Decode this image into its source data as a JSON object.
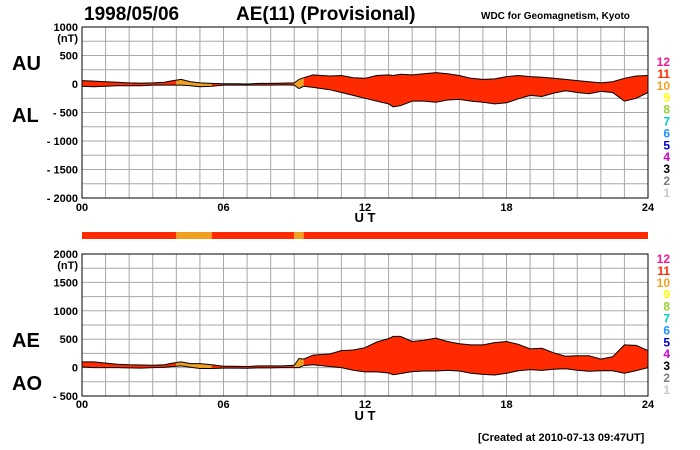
{
  "header": {
    "date": "1998/05/06",
    "title": "AE(11) (Provisional)",
    "source": "WDC for Geomagnetism, Kyoto"
  },
  "footer": {
    "created": "[Created at 2010-07-13 09:47UT]"
  },
  "colors": {
    "station_count_11": "#ff2a00",
    "station_count_10": "#f0a020",
    "outline": "#000000",
    "grid": "#a8a8a8"
  },
  "station_scale": [
    {
      "label": "12",
      "color": "#ff1493"
    },
    {
      "label": "11",
      "color": "#ff2a00"
    },
    {
      "label": "10",
      "color": "#f0a020"
    },
    {
      "label": "9",
      "color": "#ffff00"
    },
    {
      "label": "8",
      "color": "#9acd32"
    },
    {
      "label": "7",
      "color": "#00ced1"
    },
    {
      "label": "6",
      "color": "#1e90ff"
    },
    {
      "label": "5",
      "color": "#0000cd"
    },
    {
      "label": "4",
      "color": "#cc00cc"
    },
    {
      "label": "3",
      "color": "#000000"
    },
    {
      "label": "2",
      "color": "#808080"
    },
    {
      "label": "1",
      "color": "#c8c8c8"
    }
  ],
  "station_bar": {
    "segments": [
      {
        "from": 0,
        "to": 4.0,
        "count": 11
      },
      {
        "from": 4.0,
        "to": 5.5,
        "count": 10
      },
      {
        "from": 5.5,
        "to": 9.0,
        "count": 11
      },
      {
        "from": 9.0,
        "to": 9.4,
        "count": 10
      },
      {
        "from": 9.4,
        "to": 24,
        "count": 11
      }
    ]
  },
  "chart_data": [
    {
      "type": "area",
      "panel": "top",
      "series_labels": [
        "AU",
        "AL"
      ],
      "unit": "(nT)",
      "xlabel": "U T",
      "x_ticks": [
        "00",
        "06",
        "12",
        "18",
        "24"
      ],
      "xlim": [
        0,
        24
      ],
      "ylim": [
        -2000,
        1000
      ],
      "y_ticks": [
        "1000",
        "500",
        "0",
        "- 500",
        "- 1000",
        "- 1500",
        "- 2000"
      ],
      "y_tick_values": [
        1000,
        500,
        0,
        -500,
        -1000,
        -1500,
        -2000
      ],
      "x": [
        0,
        0.5,
        1,
        1.5,
        2,
        2.5,
        3,
        3.5,
        3.8,
        4.2,
        4.6,
        5,
        5.5,
        6,
        6.5,
        7,
        7.5,
        8,
        8.5,
        9,
        9.2,
        9.4,
        9.8,
        10.5,
        11,
        11.5,
        12,
        12.5,
        13,
        13.2,
        13.5,
        14,
        14.5,
        15,
        15.5,
        16,
        16.5,
        17,
        17.5,
        18,
        18.5,
        19,
        19.5,
        20,
        20.5,
        21,
        21.5,
        22,
        22.5,
        23,
        23.5,
        24
      ],
      "series": [
        {
          "name": "AU",
          "values": [
            60,
            50,
            40,
            30,
            20,
            15,
            20,
            30,
            55,
            80,
            40,
            20,
            10,
            5,
            5,
            0,
            10,
            10,
            15,
            20,
            80,
            110,
            160,
            140,
            150,
            110,
            100,
            150,
            160,
            150,
            170,
            160,
            180,
            200,
            180,
            150,
            100,
            80,
            90,
            130,
            150,
            130,
            120,
            100,
            80,
            60,
            40,
            20,
            40,
            100,
            140,
            150
          ]
        },
        {
          "name": "AL",
          "values": [
            -40,
            -50,
            -40,
            -30,
            -30,
            -30,
            -20,
            -20,
            -20,
            -20,
            -30,
            -50,
            -40,
            -20,
            -20,
            -20,
            -20,
            -20,
            -15,
            -20,
            -80,
            -40,
            -60,
            -100,
            -150,
            -200,
            -250,
            -300,
            -350,
            -400,
            -380,
            -300,
            -300,
            -320,
            -280,
            -270,
            -300,
            -320,
            -350,
            -330,
            -260,
            -200,
            -220,
            -160,
            -120,
            -150,
            -170,
            -130,
            -150,
            -300,
            -250,
            -150
          ]
        }
      ]
    },
    {
      "type": "area",
      "panel": "bottom",
      "series_labels": [
        "AE",
        "AO"
      ],
      "unit": "(nT)",
      "xlabel": "U T",
      "x_ticks": [
        "00",
        "06",
        "12",
        "18",
        "24"
      ],
      "xlim": [
        0,
        24
      ],
      "ylim": [
        -500,
        2000
      ],
      "y_ticks": [
        "2000",
        "1500",
        "1000",
        "500",
        "0",
        "- 500"
      ],
      "y_tick_values": [
        2000,
        1500,
        1000,
        500,
        0,
        -500
      ],
      "x": [
        0,
        0.5,
        1,
        1.5,
        2,
        2.5,
        3,
        3.5,
        3.8,
        4.2,
        4.6,
        5,
        5.5,
        6,
        6.5,
        7,
        7.5,
        8,
        8.5,
        9,
        9.2,
        9.4,
        9.8,
        10.5,
        11,
        11.5,
        12,
        12.5,
        13,
        13.2,
        13.5,
        14,
        14.5,
        15,
        15.5,
        16,
        16.5,
        17,
        17.5,
        18,
        18.5,
        19,
        19.5,
        20,
        20.5,
        21,
        21.5,
        22,
        22.5,
        23,
        23.5,
        24
      ],
      "series": [
        {
          "name": "AE",
          "values": [
            100,
            100,
            80,
            60,
            50,
            45,
            40,
            50,
            75,
            100,
            70,
            70,
            50,
            25,
            25,
            20,
            30,
            30,
            30,
            40,
            160,
            150,
            220,
            240,
            300,
            310,
            350,
            450,
            510,
            550,
            550,
            460,
            480,
            520,
            460,
            420,
            400,
            400,
            440,
            460,
            410,
            330,
            340,
            260,
            200,
            210,
            210,
            150,
            190,
            400,
            390,
            300
          ]
        },
        {
          "name": "AO",
          "values": [
            10,
            0,
            0,
            0,
            -5,
            -8,
            0,
            5,
            18,
            30,
            5,
            -15,
            -15,
            -8,
            -8,
            -10,
            -5,
            -5,
            0,
            0,
            0,
            35,
            50,
            20,
            0,
            -45,
            -75,
            -75,
            -95,
            -125,
            -105,
            -70,
            -60,
            -60,
            -50,
            -60,
            -100,
            -120,
            -130,
            -100,
            -55,
            -35,
            -50,
            -30,
            -20,
            -45,
            -65,
            -55,
            -55,
            -100,
            -55,
            0
          ]
        }
      ]
    }
  ]
}
